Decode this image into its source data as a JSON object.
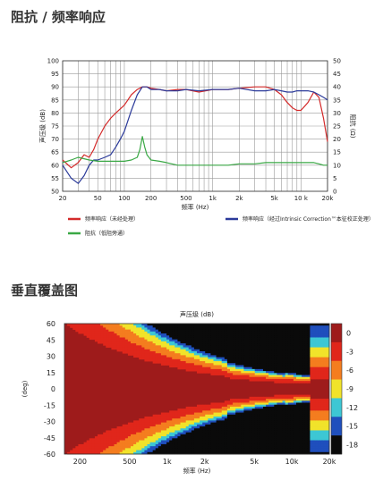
{
  "section1_title": "阻抗 / 频率响应",
  "section2_title": "垂直覆盖图",
  "chart_data": [
    {
      "type": "line",
      "x_scale": "log",
      "xlim": [
        20,
        20000
      ],
      "ylim": [
        50,
        100
      ],
      "y2lim": [
        0,
        50
      ],
      "xlabel": "频率 (Hz)",
      "ylabel": "声压级 (dB)",
      "y2label": "阻抗 (Ω)",
      "x_ticks": [
        20,
        50,
        100,
        200,
        500,
        1000,
        2000,
        5000,
        10000,
        20000
      ],
      "x_tick_labels": [
        "20",
        "50",
        "100",
        "200",
        "500",
        "1k",
        "2k",
        "5k",
        "10 k",
        "20k"
      ],
      "y_ticks": [
        50,
        55,
        60,
        65,
        70,
        75,
        80,
        85,
        90,
        95,
        100
      ],
      "y2_ticks": [
        0,
        5,
        10,
        15,
        20,
        25,
        30,
        35,
        40,
        45,
        50
      ],
      "grid": true,
      "legend_position": "bottom",
      "series": [
        {
          "name": "频率响应（未经处理）",
          "color": "#d42a2a",
          "axis": "left",
          "x": [
            20,
            25,
            30,
            35,
            40,
            45,
            50,
            60,
            70,
            80,
            100,
            120,
            140,
            160,
            180,
            200,
            250,
            300,
            400,
            500,
            700,
            1000,
            1500,
            2000,
            3000,
            4000,
            5000,
            6000,
            7000,
            8000,
            9000,
            10000,
            12000,
            14000,
            16000,
            18000,
            20000
          ],
          "y": [
            62,
            59,
            61,
            64,
            63,
            66,
            70,
            75,
            78,
            80,
            83,
            87,
            89,
            90,
            90,
            89.5,
            89,
            88.5,
            89,
            89,
            88,
            89,
            89,
            89.5,
            90,
            90,
            89,
            87,
            84,
            82,
            81,
            81,
            84,
            88,
            86,
            78,
            69
          ]
        },
        {
          "name": "频率响应（经过Intrinsic Correction™本征校正处理）",
          "color": "#2b3a9a",
          "axis": "left",
          "x": [
            20,
            25,
            30,
            35,
            40,
            45,
            50,
            60,
            70,
            80,
            90,
            100,
            120,
            140,
            160,
            180,
            200,
            250,
            300,
            400,
            500,
            700,
            1000,
            1500,
            2000,
            3000,
            4000,
            5000,
            6000,
            7000,
            8000,
            9000,
            10000,
            12000,
            14000,
            16000,
            18000,
            20000
          ],
          "y": [
            60,
            55,
            53,
            56,
            60,
            62,
            62,
            63,
            64,
            67,
            70,
            73,
            81,
            87,
            90,
            90,
            89,
            89,
            88.5,
            88.5,
            89,
            88.5,
            89,
            89,
            89.5,
            88.5,
            88.5,
            89,
            88.5,
            88,
            88,
            88.5,
            88.5,
            88.5,
            88,
            87,
            86,
            85
          ]
        },
        {
          "name": "阻抗（低阻旁通）",
          "color": "#3aa845",
          "axis": "right",
          "x": [
            20,
            25,
            30,
            40,
            50,
            60,
            70,
            80,
            100,
            120,
            140,
            150,
            160,
            170,
            180,
            200,
            250,
            300,
            400,
            500,
            700,
            1000,
            1500,
            2000,
            3000,
            4000,
            5000,
            6000,
            7000,
            8000,
            10000,
            12000,
            14000,
            16000,
            18000,
            20000
          ],
          "y": [
            11,
            12,
            13,
            12,
            11.5,
            11.5,
            11.5,
            11.5,
            11.5,
            12,
            13,
            16,
            21,
            17,
            14,
            12,
            11.5,
            11,
            10,
            10,
            10,
            10,
            10,
            10.5,
            10.5,
            11,
            11,
            11,
            11,
            11,
            11,
            11,
            11,
            10.5,
            10,
            10
          ]
        }
      ]
    },
    {
      "type": "heatmap",
      "title": "声压级 (dB)",
      "xlabel": "频率 (Hz)",
      "ylabel": "(deg)",
      "x_scale": "log",
      "xlim": [
        150,
        20000
      ],
      "ylim": [
        -60,
        60
      ],
      "x_ticks": [
        200,
        500,
        1000,
        2000,
        5000,
        10000,
        20000
      ],
      "x_tick_labels": [
        "200",
        "500",
        "1k",
        "2k",
        "5k",
        "10k",
        "20k"
      ],
      "y_ticks": [
        60,
        45,
        30,
        15,
        0,
        -15,
        -30,
        -45,
        -60
      ],
      "colorbar": {
        "levels": [
          0,
          -3,
          -6,
          -9,
          -12,
          -15,
          -18
        ],
        "colors": [
          "#9e1b1b",
          "#e0261b",
          "#f47d1f",
          "#f1e32a",
          "#3dc7d4",
          "#1f4fbd",
          "#0a0a0a"
        ]
      }
    }
  ]
}
